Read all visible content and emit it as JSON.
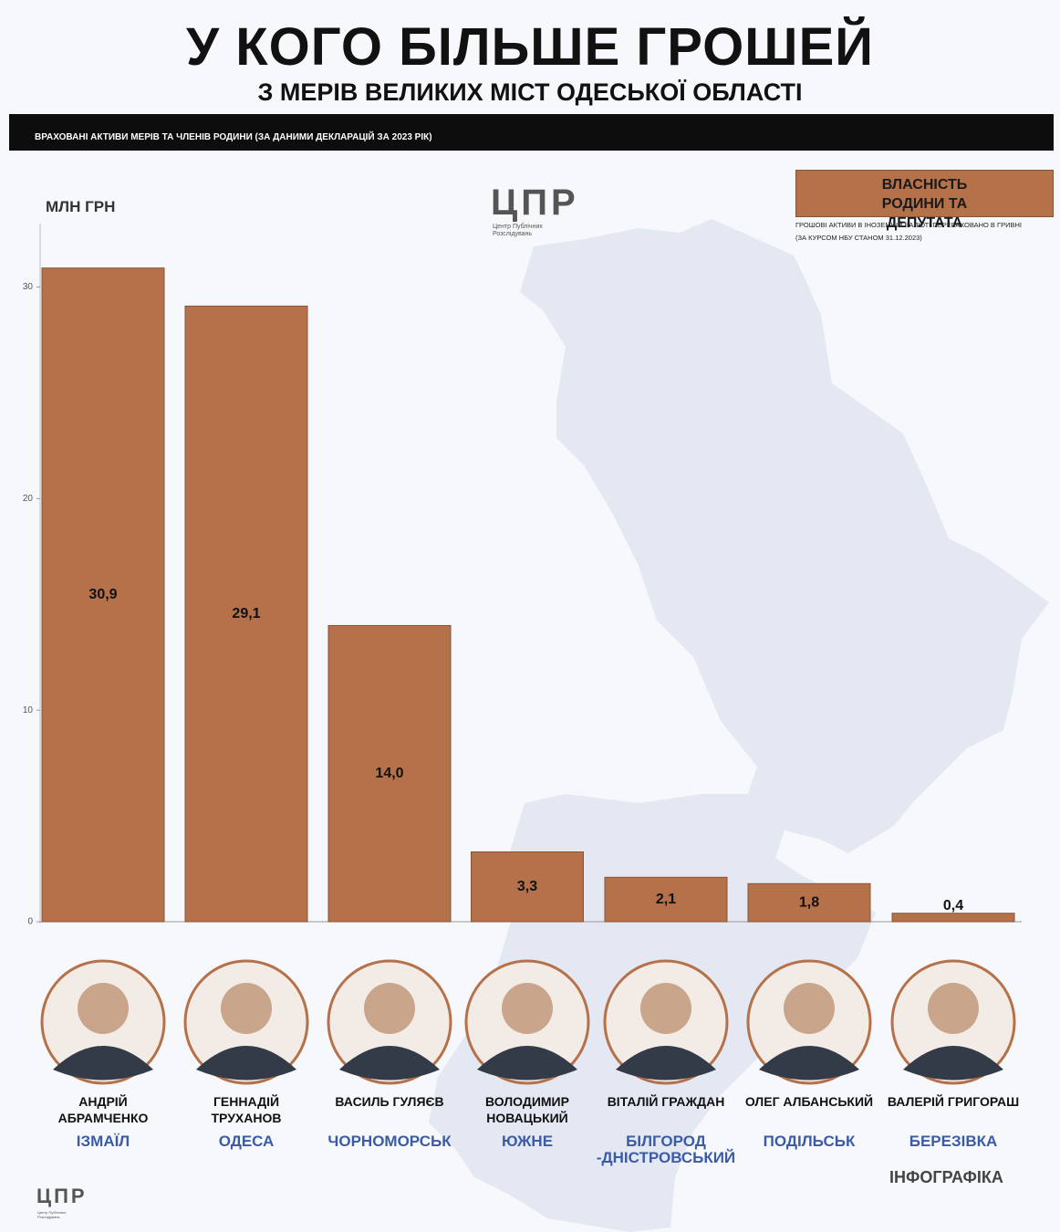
{
  "chart_data": {
    "type": "bar",
    "title": "У КОГО БІЛЬШЕ ГРОШЕЙ",
    "subtitle": "З МЕРІВ ВЕЛИКИХ МІСТ ОДЕСЬКОЇ ОБЛАСТІ",
    "banner": "ВРАХОВАНІ АКТИВИ МЕРІВ ТА ЧЛЕНІВ РОДИНИ (ЗА ДАНИМИ ДЕКЛАРАЦІЙ ЗА 2023 РІК)",
    "y_label": "МЛН ГРН",
    "notes": [
      "ГРОШОВІ АКТИВИ В ІНОЗЕМНІЙ ВАЛЮТІ ПЕРЕРАХОВАНО В ГРИВНІ",
      "(ЗА КУРСОМ НБУ СТАНОМ 31.12.2023)"
    ],
    "logo": "ЦПР",
    "logo_caption": "Центр Публічних Розслідувань",
    "footer": "ІНФОГРАФІКА",
    "categories": [
      "АНДРІЙ АБРАМЧЕНКО",
      "ГЕННАДІЙ ТРУХАНОВ",
      "ВАСИЛЬ ГУЛЯЄВ",
      "ВОЛОДИМИР НОВАЦЬКИЙ",
      "ВІТАЛІЙ ГРАЖДАН",
      "ОЛЕГ АЛБАНСЬКИЙ",
      "ВАЛЕРІЙ ГРИГОРАШ"
    ],
    "cities": [
      "ІЗМАЇЛ",
      "ОДЕСА",
      "ЧОРНОМОРСЬК",
      "ЮЖНЕ",
      "БІЛГОРОД -ДНІСТРОВСЬКИЙ",
      "ПОДІЛЬСЬК",
      "БЕРЕЗІВКА"
    ],
    "series": [
      {
        "name": "ВЛАСНІСТЬ РОДИНИ ТА ДЕПУТАТА",
        "color": "#b5714a",
        "values": [
          30.9,
          29.1,
          14.0,
          3.3,
          2.1,
          1.8,
          0.4
        ],
        "value_labels": [
          "30,9",
          "29,1",
          "14,0",
          "3,3",
          "2,1",
          "1,8",
          "0,4"
        ]
      }
    ],
    "ylim": [
      0,
      33
    ],
    "yticks": [
      0,
      10,
      20,
      30
    ]
  }
}
